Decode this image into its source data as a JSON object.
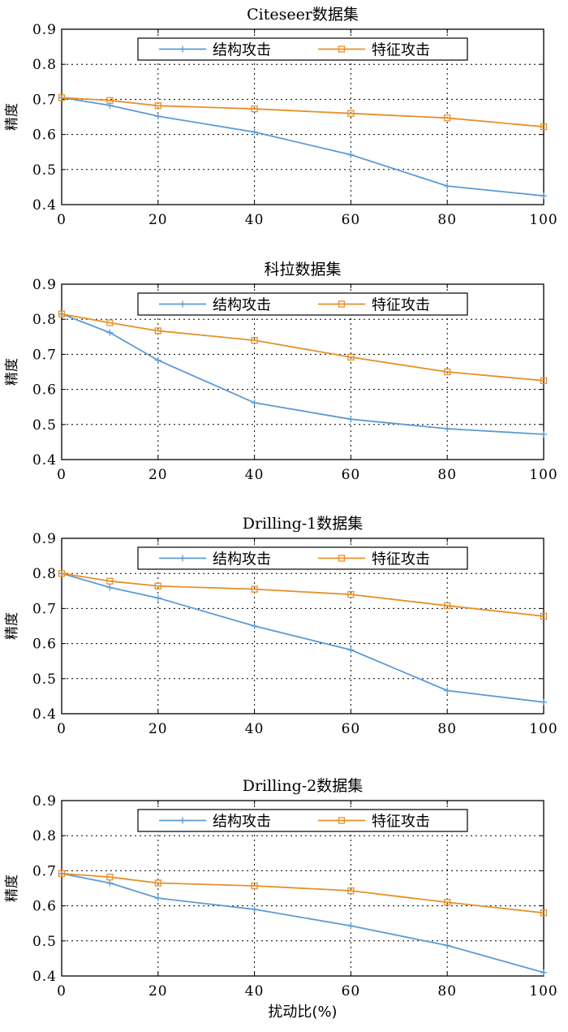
{
  "chart_data": [
    {
      "type": "line",
      "title": "Citeseer数据集",
      "ylabel": "精度",
      "xlabel": "",
      "x": [
        0,
        10,
        20,
        40,
        60,
        80,
        100
      ],
      "xticks": [
        "0",
        "20",
        "40",
        "60",
        "80",
        "100"
      ],
      "yticks": [
        "0.4",
        "0.5",
        "0.6",
        "0.7",
        "0.8",
        "0.9"
      ],
      "xlim": [
        0,
        100
      ],
      "ylim": [
        0.4,
        0.9
      ],
      "grid": true,
      "legend_position": "top",
      "series": [
        {
          "name": "结构攻击",
          "color": "#5b9bd5",
          "marker": "plus",
          "values": [
            0.705,
            0.683,
            0.652,
            0.607,
            0.542,
            0.453,
            0.425
          ]
        },
        {
          "name": "特征攻击",
          "color": "#e6902a",
          "marker": "square",
          "values": [
            0.705,
            0.697,
            0.682,
            0.673,
            0.66,
            0.647,
            0.622
          ]
        }
      ]
    },
    {
      "type": "line",
      "title": "科拉数据集",
      "ylabel": "精度",
      "xlabel": "",
      "x": [
        0,
        10,
        20,
        40,
        60,
        80,
        100
      ],
      "xticks": [
        "0",
        "20",
        "40",
        "60",
        "80",
        "100"
      ],
      "yticks": [
        "0.4",
        "0.5",
        "0.6",
        "0.7",
        "0.8",
        "0.9"
      ],
      "xlim": [
        0,
        100
      ],
      "ylim": [
        0.4,
        0.9
      ],
      "grid": true,
      "legend_position": "top",
      "series": [
        {
          "name": "结构攻击",
          "color": "#5b9bd5",
          "marker": "plus",
          "values": [
            0.815,
            0.762,
            0.683,
            0.562,
            0.515,
            0.488,
            0.472
          ]
        },
        {
          "name": "特征攻击",
          "color": "#e6902a",
          "marker": "square",
          "values": [
            0.815,
            0.79,
            0.767,
            0.74,
            0.692,
            0.65,
            0.625
          ]
        }
      ]
    },
    {
      "type": "line",
      "title": "Drilling-1数据集",
      "ylabel": "精度",
      "xlabel": "",
      "x": [
        0,
        10,
        20,
        40,
        60,
        80,
        100
      ],
      "xticks": [
        "0",
        "20",
        "40",
        "60",
        "80",
        "100"
      ],
      "yticks": [
        "0.4",
        "0.5",
        "0.6",
        "0.7",
        "0.8",
        "0.9"
      ],
      "xlim": [
        0,
        100
      ],
      "ylim": [
        0.4,
        0.9
      ],
      "grid": true,
      "legend_position": "top",
      "series": [
        {
          "name": "结构攻击",
          "color": "#5b9bd5",
          "marker": "plus",
          "values": [
            0.8,
            0.76,
            0.73,
            0.65,
            0.582,
            0.466,
            0.433
          ]
        },
        {
          "name": "特征攻击",
          "color": "#e6902a",
          "marker": "square",
          "values": [
            0.8,
            0.778,
            0.764,
            0.755,
            0.74,
            0.708,
            0.678
          ]
        }
      ]
    },
    {
      "type": "line",
      "title": "Drilling-2数据集",
      "ylabel": "精度",
      "xlabel": "扰动比(%)",
      "x": [
        0,
        10,
        20,
        40,
        60,
        80,
        100
      ],
      "xticks": [
        "0",
        "20",
        "40",
        "60",
        "80",
        "100"
      ],
      "yticks": [
        "0.4",
        "0.5",
        "0.6",
        "0.7",
        "0.8",
        "0.9"
      ],
      "xlim": [
        0,
        100
      ],
      "ylim": [
        0.4,
        0.9
      ],
      "grid": true,
      "legend_position": "top",
      "series": [
        {
          "name": "结构攻击",
          "color": "#5b9bd5",
          "marker": "plus",
          "values": [
            0.692,
            0.665,
            0.622,
            0.59,
            0.543,
            0.487,
            0.41
          ]
        },
        {
          "name": "特征攻击",
          "color": "#e6902a",
          "marker": "square",
          "values": [
            0.692,
            0.682,
            0.665,
            0.657,
            0.643,
            0.61,
            0.58
          ]
        }
      ]
    }
  ]
}
